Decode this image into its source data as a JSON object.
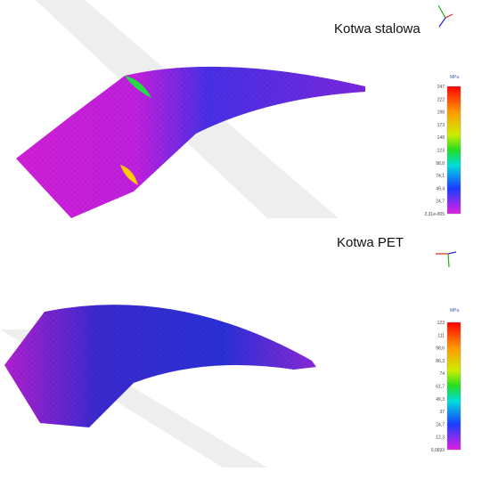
{
  "panels": [
    {
      "title": "Kotwa stalowa",
      "legend": {
        "unit": "MPa",
        "ticks": [
          "247",
          "222",
          "198",
          "173",
          "148",
          "123",
          "98,8",
          "74,1",
          "49,4",
          "24,7",
          "2,31e-005"
        ]
      }
    },
    {
      "title": "Kotwa PET",
      "legend": {
        "unit": "MPa",
        "ticks": [
          "123",
          "111",
          "98,6",
          "86,3",
          "74",
          "61,7",
          "49,3",
          "37",
          "24,7",
          "12,3",
          "0,0693"
        ]
      }
    }
  ]
}
